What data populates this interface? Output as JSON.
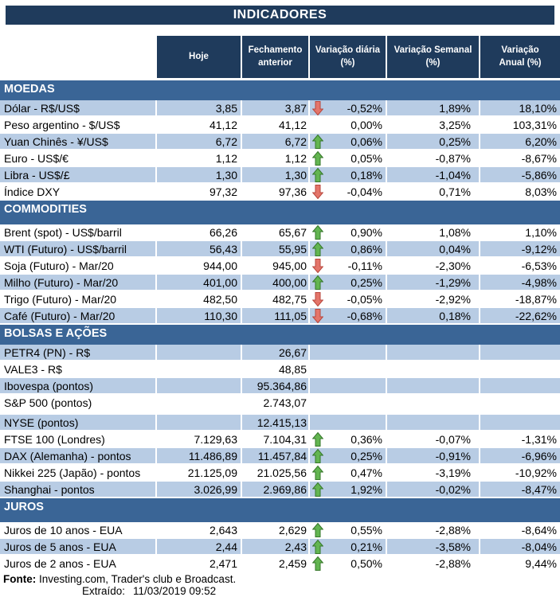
{
  "colors": {
    "title_bg": "#1f3b5c",
    "header_bg": "#1f3b5c",
    "section_bg": "#3a6596",
    "row_shaded": "#b8cce4",
    "row_white": "#ffffff",
    "up_arrow_fill": "#63b551",
    "up_arrow_stroke": "#35772a",
    "down_arrow_fill": "#e4756a",
    "down_arrow_stroke": "#b8473d"
  },
  "icons": {
    "up": "green-block-up-arrow",
    "down": "red-block-down-arrow"
  },
  "footer": {
    "fonte_label": "Fonte:",
    "fonte_text": " Investing.com, Trader's club e Broadcast.",
    "extraido_label": "Extraído:",
    "extraido_value": "11/03/2019 09:52"
  },
  "chart_data": {
    "type": "table",
    "title": "INDICADORES",
    "columns": [
      "Hoje",
      "Fechamento\nanterior",
      "Variação diária\n(%)",
      "Variação Semanal\n(%)",
      "Variação\nAnual (%)"
    ],
    "sections": [
      {
        "name": "MOEDAS",
        "tall": false,
        "first_row_shaded": true,
        "rows": [
          {
            "label": "Dólar - R$/US$",
            "hoje": "3,85",
            "fechamento": "3,87",
            "arrow": "down",
            "diaria": "-0,52%",
            "semanal": "1,89%",
            "anual": "18,10%"
          },
          {
            "label": "Peso argentino - $/US$",
            "hoje": "41,12",
            "fechamento": "41,12",
            "arrow": "",
            "diaria": "0,00%",
            "semanal": "3,25%",
            "anual": "103,31%"
          },
          {
            "label": "Yuan Chinês - ¥/US$",
            "hoje": "6,72",
            "fechamento": "6,72",
            "arrow": "up",
            "diaria": "0,06%",
            "semanal": "0,25%",
            "anual": "6,20%"
          },
          {
            "label": "Euro - US$/€",
            "hoje": "1,12",
            "fechamento": "1,12",
            "arrow": "up",
            "diaria": "0,05%",
            "semanal": "-0,87%",
            "anual": "-8,67%"
          },
          {
            "label": "Libra - US$/£",
            "hoje": "1,30",
            "fechamento": "1,30",
            "arrow": "up",
            "diaria": "0,18%",
            "semanal": "-1,04%",
            "anual": "-5,86%"
          },
          {
            "label": "Índice DXY",
            "hoje": "97,32",
            "fechamento": "97,36",
            "arrow": "down",
            "diaria": "-0,04%",
            "semanal": "0,71%",
            "anual": "8,03%"
          }
        ]
      },
      {
        "name": "COMMODITIES",
        "tall": true,
        "first_row_shaded": false,
        "rows": [
          {
            "label": "Brent (spot) - US$/barril",
            "hoje": "66,26",
            "fechamento": "65,67",
            "arrow": "up",
            "diaria": "0,90%",
            "semanal": "1,08%",
            "anual": "1,10%"
          },
          {
            "label": "WTI (Futuro) - US$/barril",
            "hoje": "56,43",
            "fechamento": "55,95",
            "arrow": "up",
            "diaria": "0,86%",
            "semanal": "0,04%",
            "anual": "-9,12%"
          },
          {
            "label": "Soja (Futuro) - Mar/20",
            "hoje": "944,00",
            "fechamento": "945,00",
            "arrow": "down",
            "diaria": "-0,11%",
            "semanal": "-2,30%",
            "anual": "-6,53%"
          },
          {
            "label": "Milho (Futuro) - Mar/20",
            "hoje": "401,00",
            "fechamento": "400,00",
            "arrow": "up",
            "diaria": "0,25%",
            "semanal": "-1,29%",
            "anual": "-4,98%"
          },
          {
            "label": "Trigo (Futuro) - Mar/20",
            "hoje": "482,50",
            "fechamento": "482,75",
            "arrow": "down",
            "diaria": "-0,05%",
            "semanal": "-2,92%",
            "anual": "-18,87%"
          },
          {
            "label": "Café (Futuro) - Mar/20",
            "hoje": "110,30",
            "fechamento": "111,05",
            "arrow": "down",
            "diaria": "-0,68%",
            "semanal": "0,18%",
            "anual": "-22,62%"
          }
        ]
      },
      {
        "name": "BOLSAS E AÇÕES",
        "tall": false,
        "first_row_shaded": true,
        "rows": [
          {
            "label": "PETR4 (PN) - R$",
            "hoje": "",
            "fechamento": "26,67",
            "arrow": "",
            "diaria": "",
            "semanal": "",
            "anual": ""
          },
          {
            "label": "VALE3 - R$",
            "hoje": "",
            "fechamento": "48,85",
            "arrow": "",
            "diaria": "",
            "semanal": "",
            "anual": ""
          },
          {
            "label": "Ibovespa (pontos)",
            "hoje": "",
            "fechamento": "95.364,86",
            "arrow": "",
            "diaria": "",
            "semanal": "",
            "anual": ""
          },
          {
            "label": "S&P 500 (pontos)",
            "hoje": "",
            "fechamento": "2.743,07",
            "arrow": "",
            "diaria": "",
            "semanal": "",
            "anual": "",
            "gap_after": true
          },
          {
            "label": "NYSE (pontos)",
            "hoje": "",
            "fechamento": "12.415,13",
            "arrow": "",
            "diaria": "",
            "semanal": "",
            "anual": ""
          },
          {
            "label": "FTSE 100 (Londres)",
            "hoje": "7.129,63",
            "fechamento": "7.104,31",
            "arrow": "up",
            "diaria": "0,36%",
            "semanal": "-0,07%",
            "anual": "-1,31%"
          },
          {
            "label": "DAX (Alemanha) - pontos",
            "hoje": "11.486,89",
            "fechamento": "11.457,84",
            "arrow": "up",
            "diaria": "0,25%",
            "semanal": "-0,91%",
            "anual": "-6,96%"
          },
          {
            "label": "Nikkei 225 (Japão) - pontos",
            "hoje": "21.125,09",
            "fechamento": "21.025,56",
            "arrow": "up",
            "diaria": "0,47%",
            "semanal": "-3,19%",
            "anual": "-10,92%"
          },
          {
            "label": "Shanghai - pontos",
            "hoje": "3.026,99",
            "fechamento": "2.969,86",
            "arrow": "up",
            "diaria": "1,92%",
            "semanal": "-0,02%",
            "anual": "-8,47%"
          }
        ]
      },
      {
        "name": "JUROS",
        "tall": true,
        "first_row_shaded": false,
        "rows": [
          {
            "label": "Juros de 10 anos - EUA",
            "hoje": "2,643",
            "fechamento": "2,629",
            "arrow": "up",
            "diaria": "0,55%",
            "semanal": "-2,88%",
            "anual": "-8,64%"
          },
          {
            "label": "Juros de 5 anos - EUA",
            "hoje": "2,44",
            "fechamento": "2,43",
            "arrow": "up",
            "diaria": "0,21%",
            "semanal": "-3,58%",
            "anual": "-8,04%"
          },
          {
            "label": "Juros de 2 anos - EUA",
            "hoje": "2,471",
            "fechamento": "2,459",
            "arrow": "up",
            "diaria": "0,50%",
            "semanal": "-2,88%",
            "anual": "9,44%"
          }
        ]
      }
    ]
  }
}
